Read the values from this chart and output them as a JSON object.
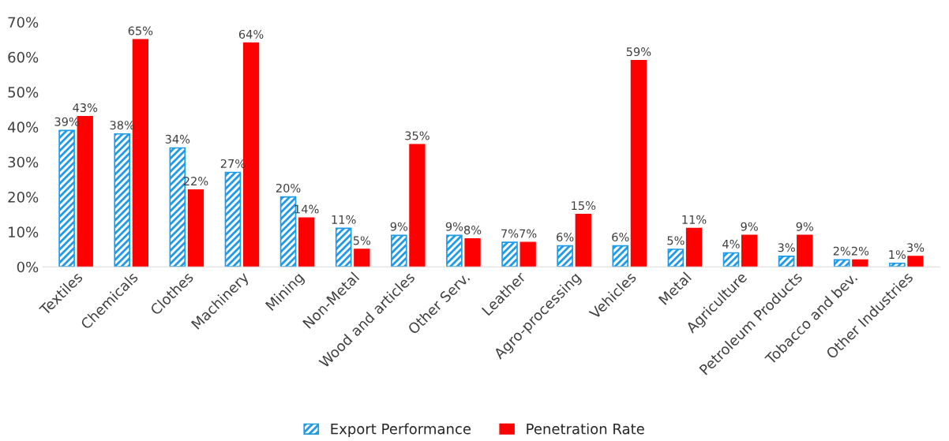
{
  "chart_data": {
    "type": "bar",
    "categories": [
      "Textiles",
      "Chemicals",
      "Clothes",
      "Machinery",
      "Mining",
      "Non-Metal",
      "Wood and articles",
      "Other Serv.",
      "Leather",
      "Agro-processing",
      "Vehicles",
      "Metal",
      "Agriculture",
      "Petroleum Products",
      "Tobacco and bev.",
      "Other Industries"
    ],
    "series": [
      {
        "name": "Export Performance",
        "color": "#1e9be8",
        "values": [
          39,
          38,
          34,
          27,
          20,
          11,
          9,
          9,
          7,
          6,
          6,
          5,
          4,
          3,
          2,
          1
        ],
        "value_labels": [
          "39%",
          "38%",
          "34%",
          "27%",
          "20%",
          "11%",
          "9%",
          "9%",
          "7%",
          "6%",
          "6%",
          "5%",
          "4%",
          "3%",
          "2%",
          "1%"
        ]
      },
      {
        "name": "Penetration Rate",
        "color": "#ff0000",
        "values": [
          43,
          65,
          22,
          64,
          14,
          5,
          35,
          8,
          7,
          15,
          59,
          11,
          9,
          9,
          2,
          3
        ],
        "value_labels": [
          "43%",
          "65%",
          "22%",
          "64%",
          "14%",
          "5%",
          "35%",
          "8%",
          "7%",
          "15%",
          "59%",
          "11%",
          "9%",
          "9%",
          "2%",
          "3%"
        ]
      }
    ],
    "ylim": [
      0,
      70
    ],
    "yticks": [
      {
        "value": 0,
        "label": "0%"
      },
      {
        "value": 10,
        "label": "10%"
      },
      {
        "value": 20,
        "label": "20%"
      },
      {
        "value": 30,
        "label": "30%"
      },
      {
        "value": 40,
        "label": "40%"
      },
      {
        "value": 50,
        "label": "50%"
      },
      {
        "value": 60,
        "label": "60%"
      },
      {
        "value": 70,
        "label": "70%"
      }
    ],
    "grid": false,
    "legend": "bottom"
  }
}
